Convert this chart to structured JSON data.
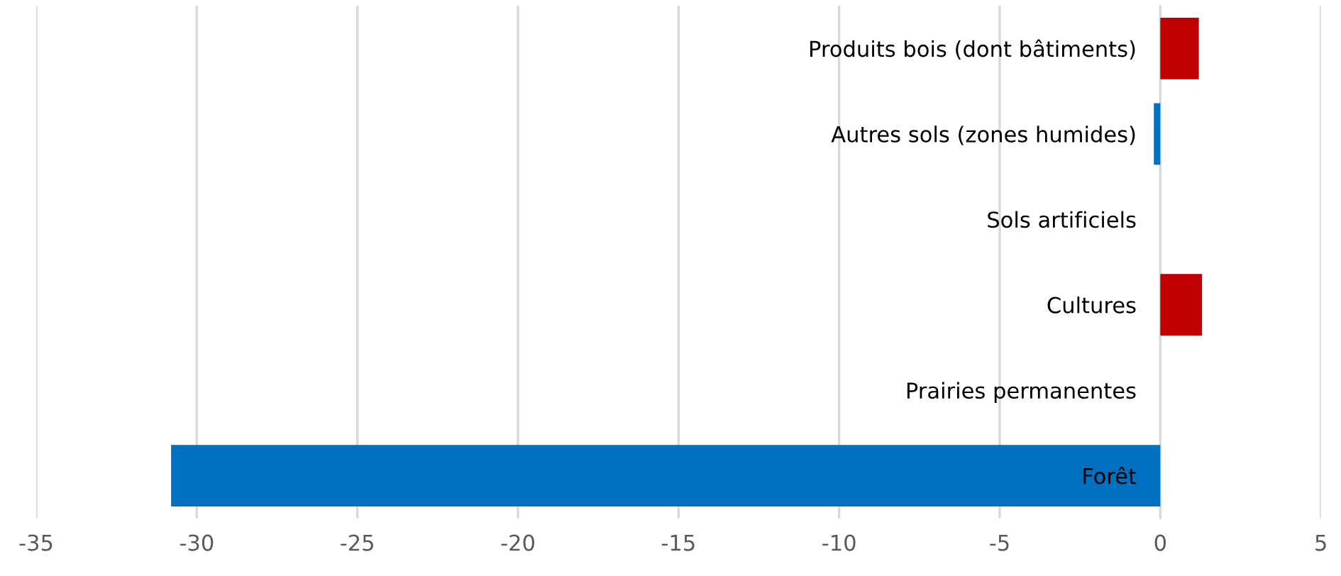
{
  "chart_data": {
    "type": "bar",
    "orientation": "horizontal",
    "categories": [
      "Produits bois (dont bâtiments)",
      "Autres sols (zones humides)",
      "Sols artificiels",
      "Cultures",
      "Prairies permanentes",
      "Forêt"
    ],
    "values": [
      1.2,
      -0.2,
      0,
      1.3,
      0,
      -30.8
    ],
    "colors": [
      "#c00000",
      "#0070c0",
      "#0070c0",
      "#c00000",
      "#0070c0",
      "#0070c0"
    ],
    "xlim": [
      -35,
      5
    ],
    "xticks": [
      -35,
      -30,
      -25,
      -20,
      -15,
      -10,
      -5,
      0,
      5
    ],
    "grid": "x",
    "legend": false
  }
}
